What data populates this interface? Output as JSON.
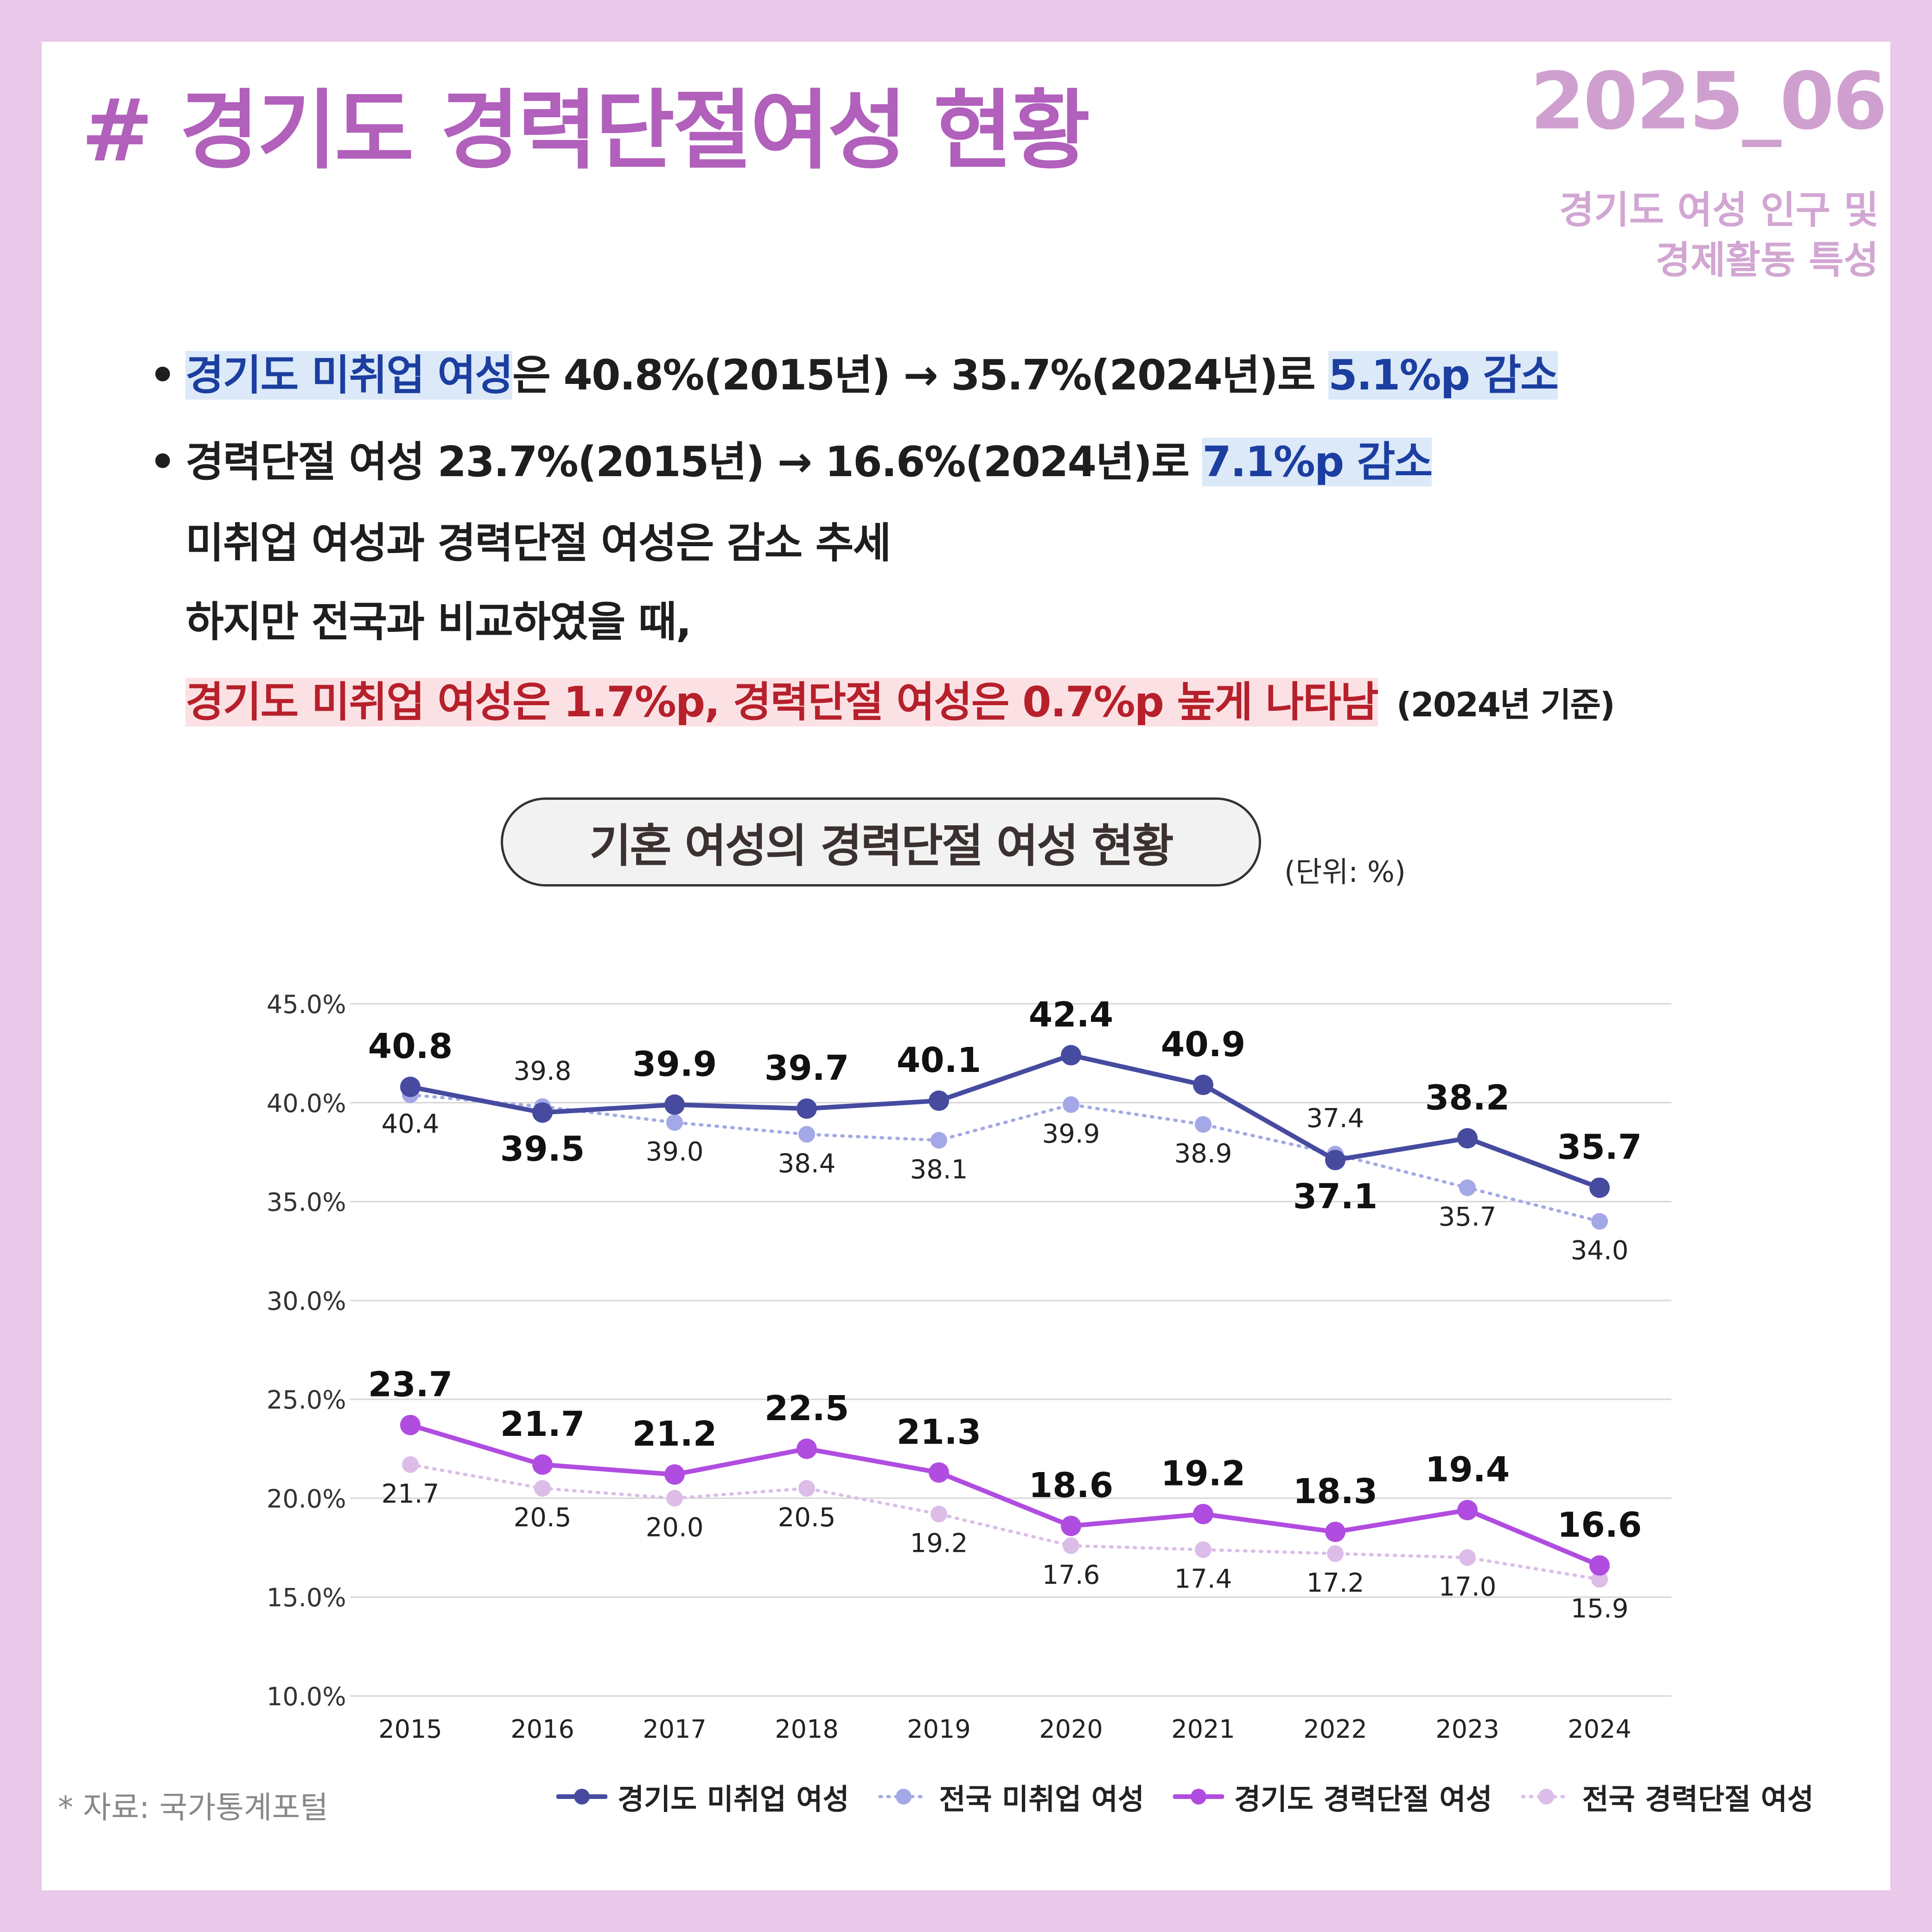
{
  "header": {
    "title": "# 경기도 경력단절여성 현황",
    "date": "2025_06",
    "subtitle_line1": "경기도 여성 인구 및",
    "subtitle_line2": "경제활동 특성"
  },
  "summary": {
    "line1_hl": "경기도 미취업 여성",
    "line1_mid": "은 40.8%(2015년) → 35.7%(2024년)로 ",
    "line1_end": "5.1%p 감소",
    "line2_mid": "경력단절 여성 23.7%(2015년) → 16.6%(2024년)로 ",
    "line2_end": "7.1%p 감소",
    "line3": "미취업 여성과 경력단절 여성은 감소 추세",
    "line4": "하지만 전국과 비교하였을 때,",
    "line5_hl": "경기도 미취업 여성은 1.7%p, 경력단절 여성은 0.7%p 높게 나타남",
    "line5_note": "(2024년 기준)"
  },
  "chart_title": "기혼 여성의 경력단절 여성 현황",
  "unit_label": "(단위: %)",
  "source_note": "* 자료: 국가통계포털",
  "colors": {
    "gg_unemployed": "#464ba0",
    "nat_unemployed": "#a3a8e6",
    "gg_career_break": "#b04de0",
    "nat_career_break": "#dbbde8"
  },
  "chart_data": {
    "type": "line",
    "x": [
      "2015",
      "2016",
      "2017",
      "2018",
      "2019",
      "2020",
      "2021",
      "2022",
      "2023",
      "2024"
    ],
    "y_ticks": [
      "45.0%",
      "40.0%",
      "35.0%",
      "30.0%",
      "25.0%",
      "20.0%",
      "15.0%",
      "10.0%"
    ],
    "ylim": [
      10,
      45
    ],
    "grid": true,
    "legend_position": "bottom-right",
    "series": [
      {
        "name": "경기도 미취업 여성",
        "values": [
          40.8,
          39.5,
          39.9,
          39.7,
          40.1,
          42.4,
          40.9,
          37.1,
          38.2,
          35.7
        ],
        "style": "solid",
        "color": "#464ba0"
      },
      {
        "name": "전국 미취업 여성",
        "values": [
          40.4,
          39.8,
          39.0,
          38.4,
          38.1,
          39.9,
          38.9,
          37.4,
          35.7,
          34.0
        ],
        "style": "dotted",
        "color": "#a3a8e6"
      },
      {
        "name": "경기도 경력단절 여성",
        "values": [
          23.7,
          21.7,
          21.2,
          22.5,
          21.3,
          18.6,
          19.2,
          18.3,
          19.4,
          16.6
        ],
        "style": "solid",
        "color": "#b04de0"
      },
      {
        "name": "전국 경력단절 여성",
        "values": [
          21.7,
          20.5,
          20.0,
          20.5,
          19.2,
          17.6,
          17.4,
          17.2,
          17.0,
          15.9
        ],
        "style": "dotted",
        "color": "#dbbde8"
      }
    ]
  }
}
